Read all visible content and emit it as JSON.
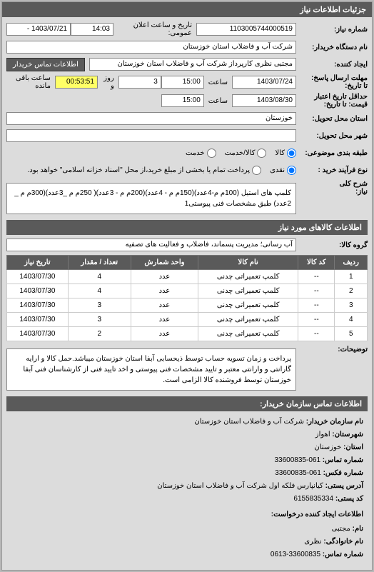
{
  "mainHeader": "جزئیات اطلاعات نیاز",
  "labels": {
    "needNumber": "شماره نیاز:",
    "announceDateTime": "تاریخ و ساعت اعلان عمومی:",
    "buyerDevice": "نام دستگاه خریدار:",
    "creator": "ایجاد کننده:",
    "contactBtn": "اطلاعات تماس خریدار",
    "deadlineSend": "مهلت ارسال پاسخ:\nتا تاریخ:",
    "time": "ساعت",
    "day": "روز و",
    "remaining": "ساعت باقی مانده",
    "validityDeadline": "حداقل تاریخ اعتبار\nقیمت: تا تاریخ:",
    "deliveryState": "استان محل تحویل:",
    "deliveryCity": "شهر محل تحویل:",
    "commodityCategory": "طبقه بندی موضوعی:",
    "purchaseType": "نوع فرآیند خرید :",
    "generalDesc": "شرح کلی\nنیاز:",
    "goodsGroup": "گروه کالا:",
    "explanations": "توضیحات:",
    "cat_goods": "کالا",
    "cat_service": "کالا/خدمت",
    "cat_serviceOnly": "خدمت",
    "pay_cash": "نقدی",
    "pay_installment": "پرداخت تمام یا بخشی از مبلغ خرید،از محل \"اسناد خزانه اسلامی\" خواهد بود."
  },
  "values": {
    "needNumber": "1103005744000519",
    "announceFrom": "14:03",
    "announceTo": "1403/07/21 - ",
    "buyerDevice": "شرکت آب و فاضلاب استان خوزستان",
    "creator": "مجتبی نظری کارپرداز شرکت آب و فاضلاب استان خوزستان",
    "deadlineDate": "1403/07/24",
    "deadlineTime": "15:00",
    "daysLeft": "3",
    "timeLeft": "00:53:51",
    "validityDate": "1403/08/30",
    "validityTime": "15:00",
    "deliveryState": "خوزستان",
    "deliveryCity": "",
    "generalDesc": "کلمپ های استیل (100م م-4عدد)(150م م - 4عدد)(200م م - 3عدد)( 250م م _3عدد)(300م م _ 2عدد) طبق مشخصات فنی پیوستی1",
    "goodsGroup": "آب رسانی؛ مدیریت پسماند، فاضلاب و فعالیت های تصفیه",
    "explanations": "پرداخت و زمان تسویه حساب توسط ذیحسابی آبفا استان خوزستان میباشد.حمل کالا و ارایه گارانتی و وارانتی معتبر و تایید مشخصات فنی پیوستی و اخد تایید فنی از کارشناسان فنی آبفا خوزستان توسط فروشنده کالا الزامی است."
  },
  "goodsInfoHeader": "اطلاعات کالاهای مورد نیاز",
  "table": {
    "headers": {
      "row": "ردیف",
      "code": "کد کالا",
      "name": "نام کالا",
      "unit": "واحد شمارش",
      "qty": "تعداد / مقدار",
      "date": "تاریخ نیاز"
    },
    "rows": [
      {
        "row": "1",
        "code": "--",
        "name": "کلمپ تعمیراتی چدنی",
        "unit": "عدد",
        "qty": "4",
        "date": "1403/07/30"
      },
      {
        "row": "2",
        "code": "--",
        "name": "کلمپ تعمیراتی چدنی",
        "unit": "عدد",
        "qty": "4",
        "date": "1403/07/30"
      },
      {
        "row": "3",
        "code": "--",
        "name": "کلمپ تعمیراتی چدنی",
        "unit": "عدد",
        "qty": "3",
        "date": "1403/07/30"
      },
      {
        "row": "4",
        "code": "--",
        "name": "کلمپ تعمیراتی چدنی",
        "unit": "عدد",
        "qty": "3",
        "date": "1403/07/30"
      },
      {
        "row": "5",
        "code": "--",
        "name": "کلمپ تعمیراتی چدنی",
        "unit": "عدد",
        "qty": "2",
        "date": "1403/07/30"
      }
    ]
  },
  "contact": {
    "header": "اطلاعات تماس سازمان خریدار:",
    "orgNameLabel": "نام سازمان خریدار:",
    "orgName": "شرکت آب و فاضلاب استان خوزستان",
    "stateLabel": "استان:",
    "state": "خوزستان",
    "cityLabel": "شهرستان:",
    "city": "اهواز",
    "phoneLabel": "شماره تماس:",
    "phone": "061-33600835",
    "faxLabel": "شماره فکس:",
    "fax": "061-33600835",
    "addressLabel": "آدرس پستی:",
    "address": "کیانپارس فلکه اول شرکت آب و فاضلاب استان خوزستان",
    "nationalCodeLabel": "کد پستی:",
    "nationalCode": "6155835334",
    "creatorHeader": "اطلاعات ایجاد کننده درخواست:",
    "nameLabel": "نام:",
    "name": "مجتبی",
    "familyLabel": "نام خانوادگی:",
    "family": "نظری",
    "contactPhoneLabel": "شماره تماس:",
    "contactPhone": "33600835-0613"
  }
}
